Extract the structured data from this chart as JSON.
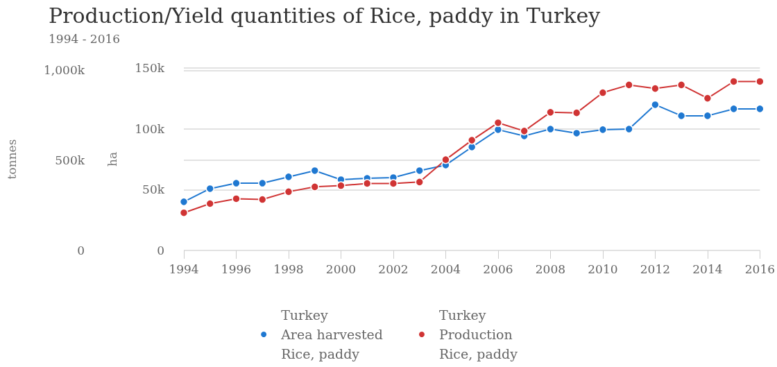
{
  "chart_data": {
    "type": "line",
    "title": "Production/Yield quantities of Rice, paddy in Turkey",
    "subtitle": "1994 - 2016",
    "ylabel": "ha",
    "y2label": "tonnes",
    "x": [
      1994,
      1995,
      1996,
      1997,
      1998,
      1999,
      2000,
      2001,
      2002,
      2003,
      2004,
      2005,
      2006,
      2007,
      2008,
      2009,
      2010,
      2011,
      2012,
      2013,
      2014,
      2015,
      2016
    ],
    "series": [
      {
        "name": "Turkey\nArea harvested\nRice, paddy",
        "color": "#1f78d1",
        "values": [
          40000,
          50800,
          55300,
          55300,
          60500,
          65600,
          58200,
          59300,
          59900,
          65600,
          70200,
          85000,
          99300,
          94100,
          99800,
          96400,
          99300,
          99800,
          119800,
          110700,
          110700,
          116400,
          116400
        ]
      },
      {
        "name": "Turkey\nProduction\nRice, paddy",
        "color": "#d03434",
        "axis": "y2",
        "values": [
          209000,
          260000,
          287000,
          283000,
          326000,
          353000,
          360000,
          372000,
          372000,
          380000,
          504000,
          612000,
          709000,
          663000,
          767000,
          764000,
          876000,
          919000,
          899000,
          919000,
          845000,
          938000,
          938000
        ]
      }
    ],
    "xlim": [
      1994,
      2016
    ],
    "xticks": [
      1994,
      1996,
      1998,
      2000,
      2002,
      2004,
      2006,
      2008,
      2010,
      2012,
      2014,
      2016
    ],
    "ylim": [
      0,
      150000
    ],
    "yticks": [
      0,
      {
        "value": 50000,
        "label": "50k"
      },
      {
        "value": 100000,
        "label": "100k"
      },
      {
        "value": 150000,
        "label": "150k"
      }
    ],
    "y2lim": [
      0,
      1013000
    ],
    "y2ticks": [
      0,
      {
        "value": 500000,
        "label": "500k"
      },
      {
        "value": 1000000,
        "label": "1,000k"
      }
    ],
    "grid": "y",
    "legend": "bottom",
    "marker": "circle",
    "line_style": "solid"
  }
}
